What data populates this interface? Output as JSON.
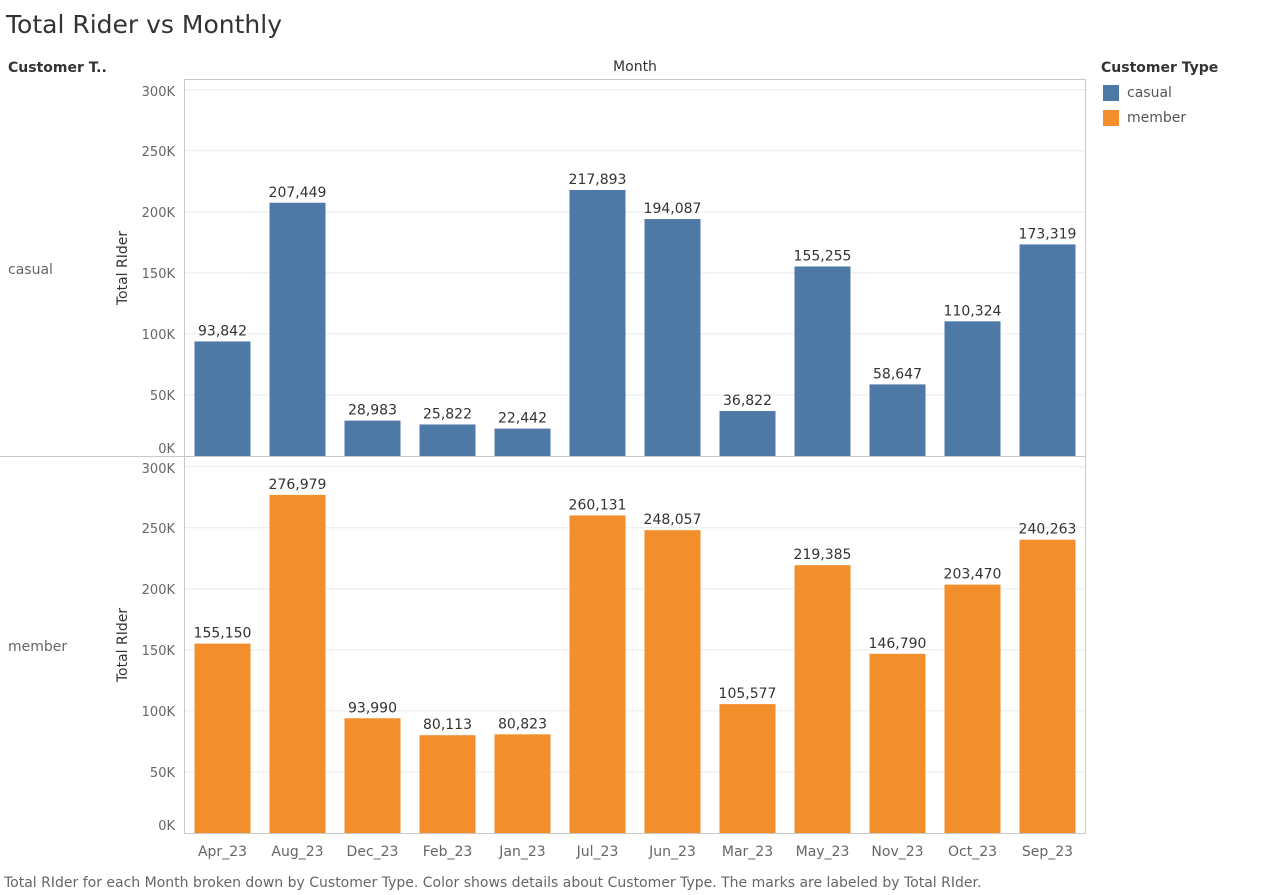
{
  "header": {
    "title": "Total Rider vs Monthly",
    "row_header": "Customer T..",
    "column_header": "Month"
  },
  "legend": {
    "title": "Customer Type",
    "items": [
      {
        "label": "casual",
        "color": "#4e79a7"
      },
      {
        "label": "member",
        "color": "#f28e2b"
      }
    ]
  },
  "footer": {
    "caption": "Total RIder for each Month broken down by Customer Type.  Color shows details about Customer Type.  The marks are labeled by Total RIder."
  },
  "chart_data": {
    "type": "bar",
    "categories": [
      "Apr_23",
      "Aug_23",
      "Dec_23",
      "Feb_23",
      "Jan_23",
      "Jul_23",
      "Jun_23",
      "Mar_23",
      "May_23",
      "Nov_23",
      "Oct_23",
      "Sep_23"
    ],
    "ylabel": "Total RIder",
    "ylim": [
      0,
      300000
    ],
    "yticks": [
      0,
      50000,
      100000,
      150000,
      200000,
      250000,
      300000
    ],
    "ytick_labels": [
      "0K",
      "50K",
      "100K",
      "150K",
      "200K",
      "250K",
      "300K"
    ],
    "grid": true,
    "series": [
      {
        "name": "casual",
        "color": "#4e79a7",
        "values": [
          93842,
          207449,
          28983,
          25822,
          22442,
          217893,
          194087,
          36822,
          155255,
          58647,
          110324,
          173319
        ],
        "labels": [
          "93,842",
          "207,449",
          "28,983",
          "25,822",
          "22,442",
          "217,893",
          "194,087",
          "36,822",
          "155,255",
          "58,647",
          "110,324",
          "173,319"
        ]
      },
      {
        "name": "member",
        "color": "#f28e2b",
        "values": [
          155150,
          276979,
          93990,
          80113,
          80823,
          260131,
          248057,
          105577,
          219385,
          146790,
          203470,
          240263
        ],
        "labels": [
          "155,150",
          "276,979",
          "93,990",
          "80,113",
          "80,823",
          "260,131",
          "248,057",
          "105,577",
          "219,385",
          "146,790",
          "203,470",
          "240,263"
        ]
      }
    ]
  }
}
